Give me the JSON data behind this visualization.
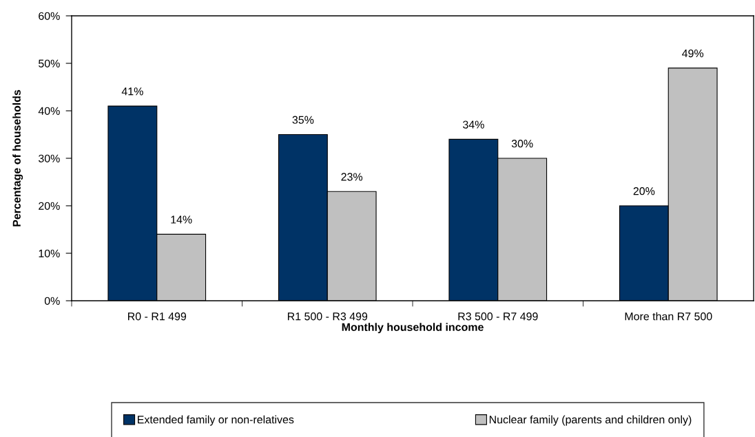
{
  "chart_data": {
    "type": "bar",
    "xlabel": "Monthly household income",
    "ylabel": "Percentage of households",
    "categories": [
      "R0 - R1 499",
      "R1 500 - R3 499",
      "R3 500 - R7 499",
      "More than R7 500"
    ],
    "series": [
      {
        "name": "Extended family or non-relatives",
        "color": "#003366",
        "values": [
          41,
          35,
          34,
          20
        ],
        "value_labels": [
          "41%",
          "35%",
          "34%",
          "20%"
        ]
      },
      {
        "name": "Nuclear family (parents and children only)",
        "color": "#c0c0c0",
        "values": [
          14,
          23,
          30,
          49
        ],
        "value_labels": [
          "14%",
          "23%",
          "30%",
          "49%"
        ]
      }
    ],
    "ylim": [
      0,
      60
    ],
    "yticks": [
      {
        "value": 0,
        "label": "0%"
      },
      {
        "value": 10,
        "label": "10%"
      },
      {
        "value": 20,
        "label": "20%"
      },
      {
        "value": 30,
        "label": "30%"
      },
      {
        "value": 40,
        "label": "40%"
      },
      {
        "value": 50,
        "label": "50%"
      },
      {
        "value": 60,
        "label": "60%"
      }
    ],
    "grid": false,
    "legend": "bottom"
  }
}
